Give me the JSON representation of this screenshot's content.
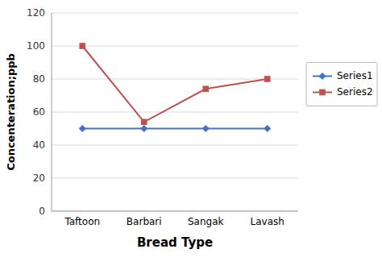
{
  "chart_data": {
    "type": "line",
    "categories": [
      "Taftoon",
      "Barbari",
      "Sangak",
      "Lavash"
    ],
    "series": [
      {
        "name": "Series1",
        "color": "#4472C4",
        "marker": "diamond",
        "values": [
          50,
          50,
          50,
          50
        ]
      },
      {
        "name": "Series2",
        "color": "#C0504D",
        "marker": "square",
        "values": [
          100,
          54,
          74,
          80
        ]
      }
    ],
    "xlabel": "Bread Type",
    "ylabel": "Concenteration;ppb",
    "ylim": [
      0,
      120
    ],
    "yticks": [
      0,
      20,
      40,
      60,
      80,
      100,
      120
    ],
    "grid": true,
    "legend": "right"
  }
}
